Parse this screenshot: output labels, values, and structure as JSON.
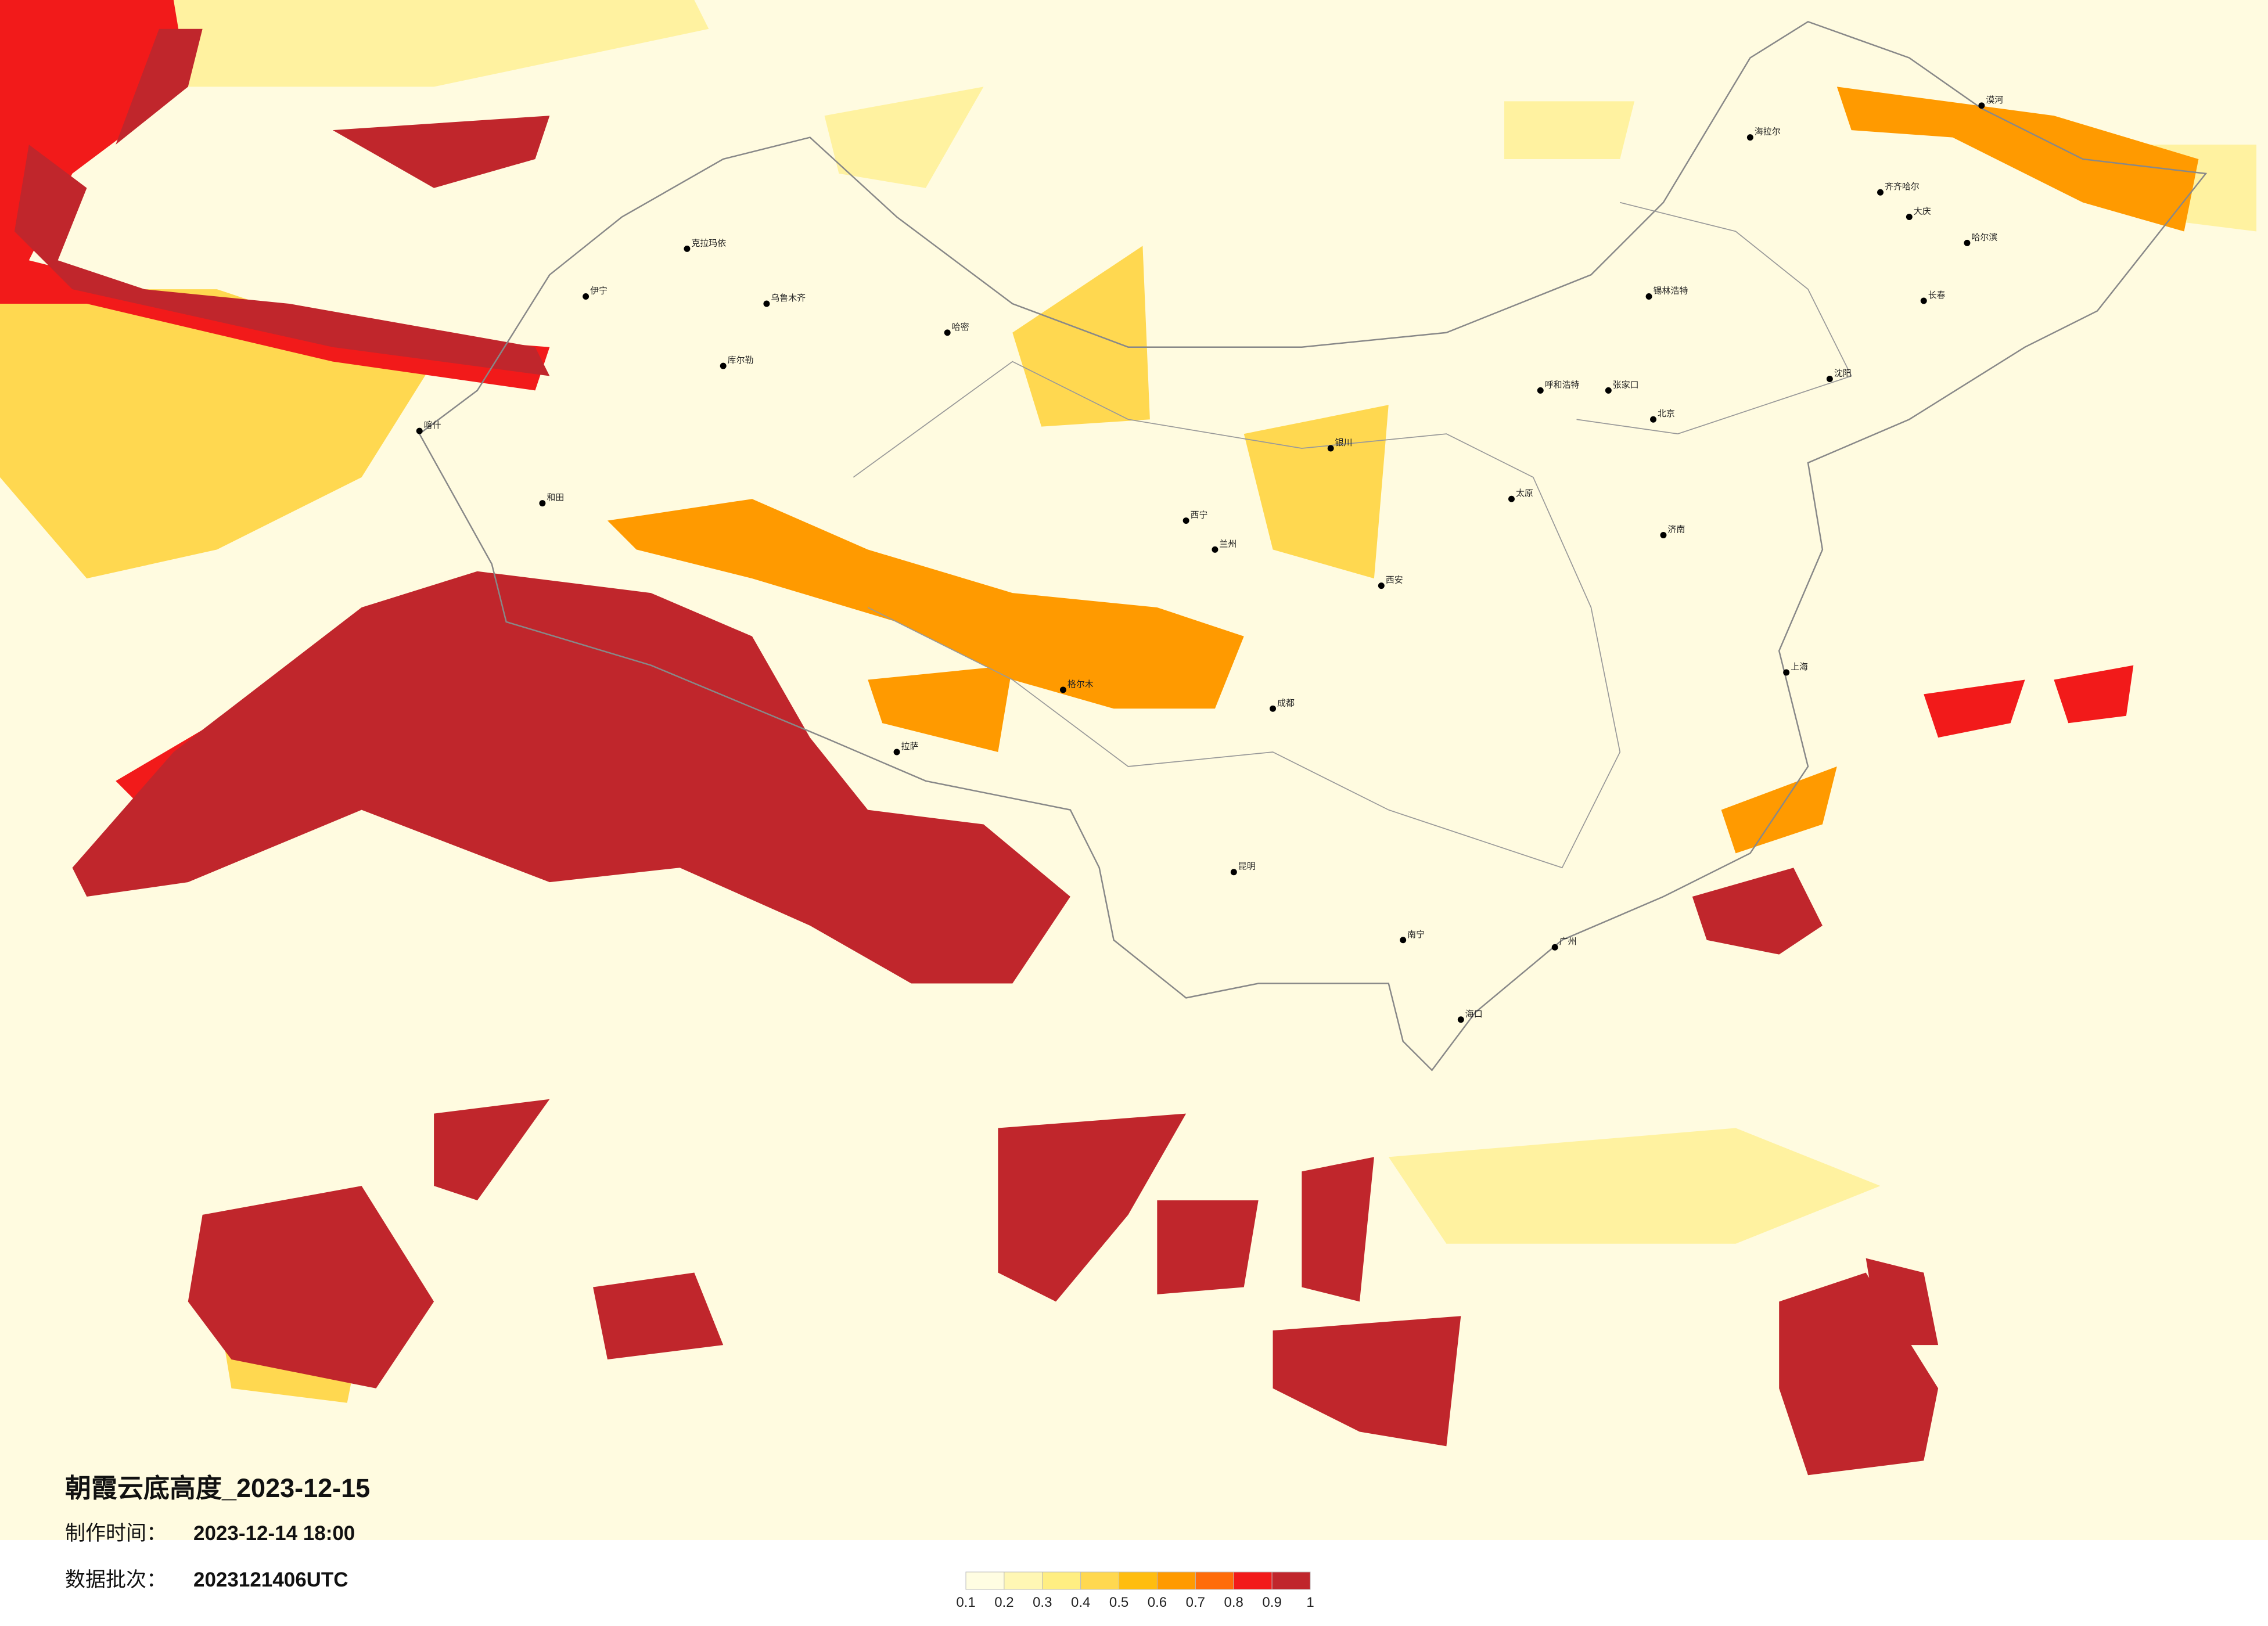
{
  "title": "朝霞云底高度_2023-12-15",
  "made_time_label": "制作时间：",
  "made_time": "2023-12-14 18:00",
  "batch_label": "数据批次：",
  "batch": "2023121406UTC",
  "colorbar": {
    "ticks": [
      0.1,
      0.2,
      0.3,
      0.4,
      0.5,
      0.6,
      0.7,
      0.8,
      0.9,
      1
    ],
    "colors": [
      "#fffde2",
      "#fff7b4",
      "#ffee82",
      "#ffd850",
      "#ffbd10",
      "#ff9a00",
      "#ff6c0a",
      "#f21a1a",
      "#c0262c"
    ]
  },
  "cities": [
    "克拉玛依",
    "伊宁",
    "乌鲁木齐",
    "哈密",
    "库尔勒",
    "喀什",
    "和田",
    "格尔木",
    "西宁",
    "兰州",
    "银川",
    "呼和浩特",
    "锡林浩特",
    "海拉尔",
    "漠河",
    "齐齐哈尔",
    "大庆",
    "哈尔滨",
    "长春",
    "沈阳",
    "北京",
    "太原",
    "西安",
    "成都",
    "昆明",
    "南宁",
    "广州",
    "上海",
    "海口",
    "拉萨",
    "张家口",
    "济南"
  ]
}
